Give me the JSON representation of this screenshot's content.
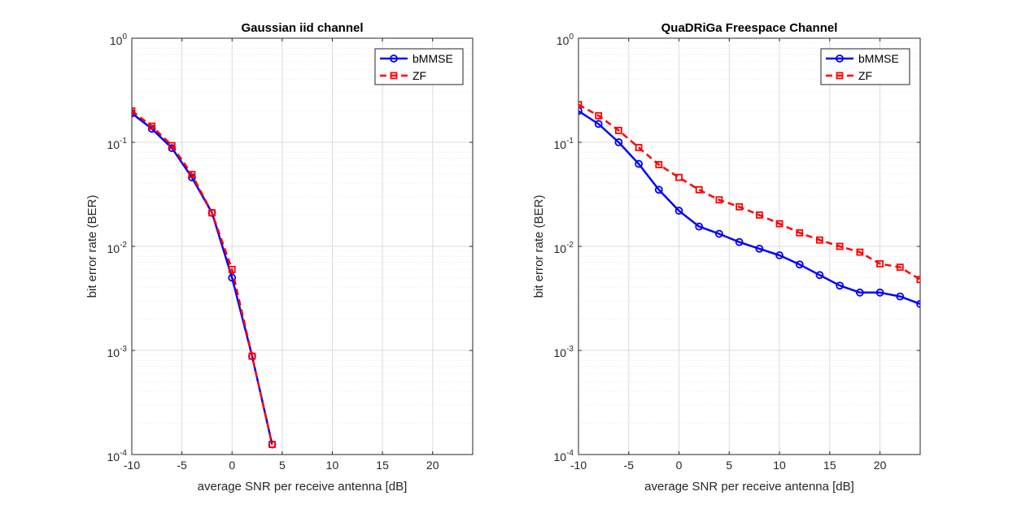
{
  "figure": {
    "background": "#ffffff"
  },
  "chart_data": [
    {
      "type": "line",
      "title": "Gaussian iid channel",
      "xlabel": "average SNR per receive antenna [dB]",
      "ylabel": "bit error rate (BER)",
      "xlim": [
        -10,
        24
      ],
      "ylim": [
        0.0001,
        1
      ],
      "yscale": "log",
      "grid": true,
      "minor_grid": true,
      "legend_position": "top-right",
      "x_ticks": [
        {
          "value": -10,
          "label": "-10"
        },
        {
          "value": -5,
          "label": "-5"
        },
        {
          "value": 0,
          "label": "0"
        },
        {
          "value": 5,
          "label": "5"
        },
        {
          "value": 10,
          "label": "10"
        },
        {
          "value": 15,
          "label": "15"
        },
        {
          "value": 20,
          "label": "20"
        }
      ],
      "y_ticks": [
        {
          "value": 1,
          "base": "10",
          "exp": "0"
        },
        {
          "value": 0.1,
          "base": "10",
          "exp": "-1"
        },
        {
          "value": 0.01,
          "base": "10",
          "exp": "-2"
        },
        {
          "value": 0.001,
          "base": "10",
          "exp": "-3"
        },
        {
          "value": 0.0001,
          "base": "10",
          "exp": "-4"
        }
      ],
      "series": [
        {
          "name": "bMMSE",
          "color": "#0000ff",
          "dash": "solid",
          "marker": "circle",
          "x": [
            -10,
            -8,
            -6,
            -4,
            -2,
            0,
            2,
            4
          ],
          "y": [
            0.19,
            0.135,
            0.088,
            0.046,
            0.021,
            0.005,
            0.00088,
            0.000125
          ]
        },
        {
          "name": "ZF",
          "color": "#ff0000",
          "dash": "dashed",
          "marker": "square",
          "x": [
            -10,
            -8,
            -6,
            -4,
            -2,
            0,
            2,
            4
          ],
          "y": [
            0.2,
            0.143,
            0.093,
            0.049,
            0.021,
            0.006,
            0.00088,
            0.000125
          ]
        }
      ]
    },
    {
      "type": "line",
      "title": "QuaDRiGa Freespace Channel",
      "xlabel": "average SNR per receive antenna [dB]",
      "ylabel": "bit error rate (BER)",
      "xlim": [
        -10,
        24
      ],
      "ylim": [
        0.0001,
        1
      ],
      "yscale": "log",
      "grid": true,
      "minor_grid": true,
      "legend_position": "top-right",
      "x_ticks": [
        {
          "value": -10,
          "label": "-10"
        },
        {
          "value": -5,
          "label": "-5"
        },
        {
          "value": 0,
          "label": "0"
        },
        {
          "value": 5,
          "label": "5"
        },
        {
          "value": 10,
          "label": "10"
        },
        {
          "value": 15,
          "label": "15"
        },
        {
          "value": 20,
          "label": "20"
        }
      ],
      "y_ticks": [
        {
          "value": 1,
          "base": "10",
          "exp": "0"
        },
        {
          "value": 0.1,
          "base": "10",
          "exp": "-1"
        },
        {
          "value": 0.01,
          "base": "10",
          "exp": "-2"
        },
        {
          "value": 0.001,
          "base": "10",
          "exp": "-3"
        },
        {
          "value": 0.0001,
          "base": "10",
          "exp": "-4"
        }
      ],
      "series": [
        {
          "name": "bMMSE",
          "color": "#0000ff",
          "dash": "solid",
          "marker": "circle",
          "x": [
            -10,
            -8,
            -6,
            -4,
            -2,
            0,
            2,
            4,
            6,
            8,
            10,
            12,
            14,
            16,
            18,
            20,
            22,
            24
          ],
          "y": [
            0.2,
            0.15,
            0.1,
            0.062,
            0.035,
            0.022,
            0.0155,
            0.0132,
            0.011,
            0.0095,
            0.0082,
            0.0067,
            0.0053,
            0.0042,
            0.0036,
            0.0036,
            0.0033,
            0.0028
          ]
        },
        {
          "name": "ZF",
          "color": "#ff0000",
          "dash": "dashed",
          "marker": "square",
          "x": [
            -10,
            -8,
            -6,
            -4,
            -2,
            0,
            2,
            4,
            6,
            8,
            10,
            12,
            14,
            16,
            18,
            20,
            22,
            24
          ],
          "y": [
            0.23,
            0.18,
            0.13,
            0.089,
            0.061,
            0.046,
            0.035,
            0.028,
            0.024,
            0.02,
            0.0165,
            0.0135,
            0.0115,
            0.01,
            0.0088,
            0.0068,
            0.0063,
            0.0048
          ]
        }
      ]
    }
  ]
}
